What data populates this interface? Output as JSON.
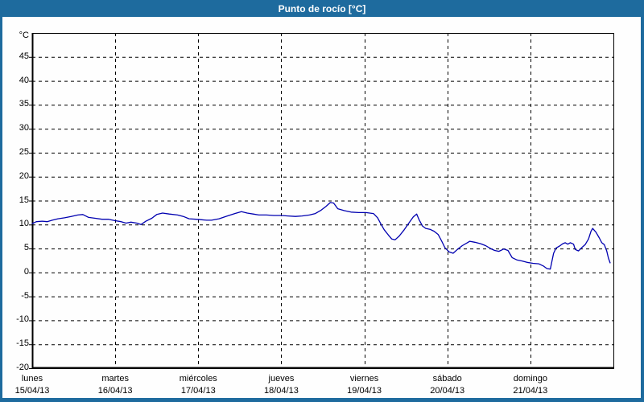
{
  "window": {
    "title": "Punto de rocío [°C]"
  },
  "colors": {
    "titlebar": "#1e6b9e",
    "outer_border": "#1e6b9e",
    "plot_background": "#fefefe",
    "grid": "#000000",
    "axis_frame": "#000000",
    "line": "#0000b0",
    "title_text": "#ffffff",
    "label_text": "#000000"
  },
  "chart_data": {
    "type": "line",
    "title": "Punto de rocío [°C]",
    "unit_label": "°C",
    "ylim": [
      -20,
      50
    ],
    "y_tick_step": 5,
    "y_ticks": [
      45,
      40,
      35,
      30,
      25,
      20,
      15,
      10,
      5,
      0,
      -5,
      -10,
      -15,
      -20
    ],
    "grid": "dashed",
    "legend": "none",
    "x_axis": {
      "span_days": 7,
      "days": [
        {
          "name": "lunes",
          "date": "15/04/13"
        },
        {
          "name": "martes",
          "date": "16/04/13"
        },
        {
          "name": "miércoles",
          "date": "17/04/13"
        },
        {
          "name": "jueves",
          "date": "18/04/13"
        },
        {
          "name": "viernes",
          "date": "19/04/13"
        },
        {
          "name": "sábado",
          "date": "20/04/13"
        },
        {
          "name": "domingo",
          "date": "21/04/13"
        }
      ]
    },
    "series": [
      {
        "name": "Punto de rocío",
        "color": "#0000b0",
        "x_unit": "days",
        "points": [
          [
            0.0,
            10.2
          ],
          [
            0.05,
            10.6
          ],
          [
            0.12,
            10.7
          ],
          [
            0.18,
            10.6
          ],
          [
            0.24,
            10.9
          ],
          [
            0.31,
            11.2
          ],
          [
            0.39,
            11.4
          ],
          [
            0.47,
            11.7
          ],
          [
            0.55,
            12.0
          ],
          [
            0.61,
            12.1
          ],
          [
            0.68,
            11.5
          ],
          [
            0.76,
            11.3
          ],
          [
            0.84,
            11.1
          ],
          [
            0.92,
            11.1
          ],
          [
            1.0,
            10.8
          ],
          [
            1.07,
            10.6
          ],
          [
            1.13,
            10.3
          ],
          [
            1.19,
            10.5
          ],
          [
            1.26,
            10.3
          ],
          [
            1.31,
            10.0
          ],
          [
            1.37,
            10.7
          ],
          [
            1.44,
            11.3
          ],
          [
            1.5,
            12.1
          ],
          [
            1.57,
            12.4
          ],
          [
            1.65,
            12.2
          ],
          [
            1.75,
            12.0
          ],
          [
            1.82,
            11.7
          ],
          [
            1.89,
            11.2
          ],
          [
            1.97,
            11.1
          ],
          [
            2.04,
            11.0
          ],
          [
            2.1,
            10.9
          ],
          [
            2.16,
            10.9
          ],
          [
            2.25,
            11.2
          ],
          [
            2.35,
            11.8
          ],
          [
            2.44,
            12.3
          ],
          [
            2.52,
            12.7
          ],
          [
            2.59,
            12.4
          ],
          [
            2.66,
            12.2
          ],
          [
            2.73,
            12.0
          ],
          [
            2.82,
            12.0
          ],
          [
            2.91,
            11.9
          ],
          [
            3.0,
            11.9
          ],
          [
            3.08,
            11.8
          ],
          [
            3.17,
            11.7
          ],
          [
            3.25,
            11.8
          ],
          [
            3.34,
            12.0
          ],
          [
            3.41,
            12.3
          ],
          [
            3.48,
            13.0
          ],
          [
            3.54,
            13.8
          ],
          [
            3.59,
            14.6
          ],
          [
            3.63,
            14.5
          ],
          [
            3.68,
            13.3
          ],
          [
            3.76,
            12.9
          ],
          [
            3.84,
            12.6
          ],
          [
            3.93,
            12.5
          ],
          [
            4.02,
            12.5
          ],
          [
            4.11,
            12.3
          ],
          [
            4.16,
            11.4
          ],
          [
            4.2,
            10.1
          ],
          [
            4.24,
            8.9
          ],
          [
            4.29,
            7.8
          ],
          [
            4.33,
            7.0
          ],
          [
            4.37,
            6.8
          ],
          [
            4.42,
            7.6
          ],
          [
            4.48,
            8.9
          ],
          [
            4.54,
            10.4
          ],
          [
            4.59,
            11.6
          ],
          [
            4.63,
            12.2
          ],
          [
            4.66,
            11.0
          ],
          [
            4.7,
            9.7
          ],
          [
            4.74,
            9.2
          ],
          [
            4.79,
            9.0
          ],
          [
            4.84,
            8.6
          ],
          [
            4.89,
            7.9
          ],
          [
            4.93,
            6.6
          ],
          [
            4.97,
            5.2
          ],
          [
            5.02,
            4.3
          ],
          [
            5.07,
            4.0
          ],
          [
            5.12,
            4.8
          ],
          [
            5.18,
            5.6
          ],
          [
            5.24,
            6.2
          ],
          [
            5.27,
            6.5
          ],
          [
            5.33,
            6.3
          ],
          [
            5.4,
            6.0
          ],
          [
            5.46,
            5.6
          ],
          [
            5.52,
            5.0
          ],
          [
            5.57,
            4.6
          ],
          [
            5.62,
            4.4
          ],
          [
            5.68,
            4.9
          ],
          [
            5.73,
            4.6
          ],
          [
            5.78,
            3.1
          ],
          [
            5.84,
            2.6
          ],
          [
            5.9,
            2.4
          ],
          [
            5.96,
            2.1
          ],
          [
            6.03,
            1.9
          ],
          [
            6.1,
            1.8
          ],
          [
            6.16,
            1.3
          ],
          [
            6.2,
            0.8
          ],
          [
            6.24,
            0.7
          ],
          [
            6.28,
            4.0
          ],
          [
            6.31,
            5.1
          ],
          [
            6.35,
            5.5
          ],
          [
            6.39,
            6.0
          ],
          [
            6.42,
            6.2
          ],
          [
            6.45,
            5.9
          ],
          [
            6.48,
            6.2
          ],
          [
            6.52,
            5.9
          ],
          [
            6.54,
            4.8
          ],
          [
            6.58,
            4.5
          ],
          [
            6.62,
            5.2
          ],
          [
            6.66,
            5.8
          ],
          [
            6.7,
            7.0
          ],
          [
            6.73,
            8.6
          ],
          [
            6.75,
            9.2
          ],
          [
            6.79,
            8.4
          ],
          [
            6.83,
            7.2
          ],
          [
            6.86,
            6.2
          ],
          [
            6.89,
            5.8
          ],
          [
            6.92,
            4.5
          ],
          [
            6.94,
            3.0
          ],
          [
            6.96,
            2.0
          ]
        ]
      }
    ]
  }
}
